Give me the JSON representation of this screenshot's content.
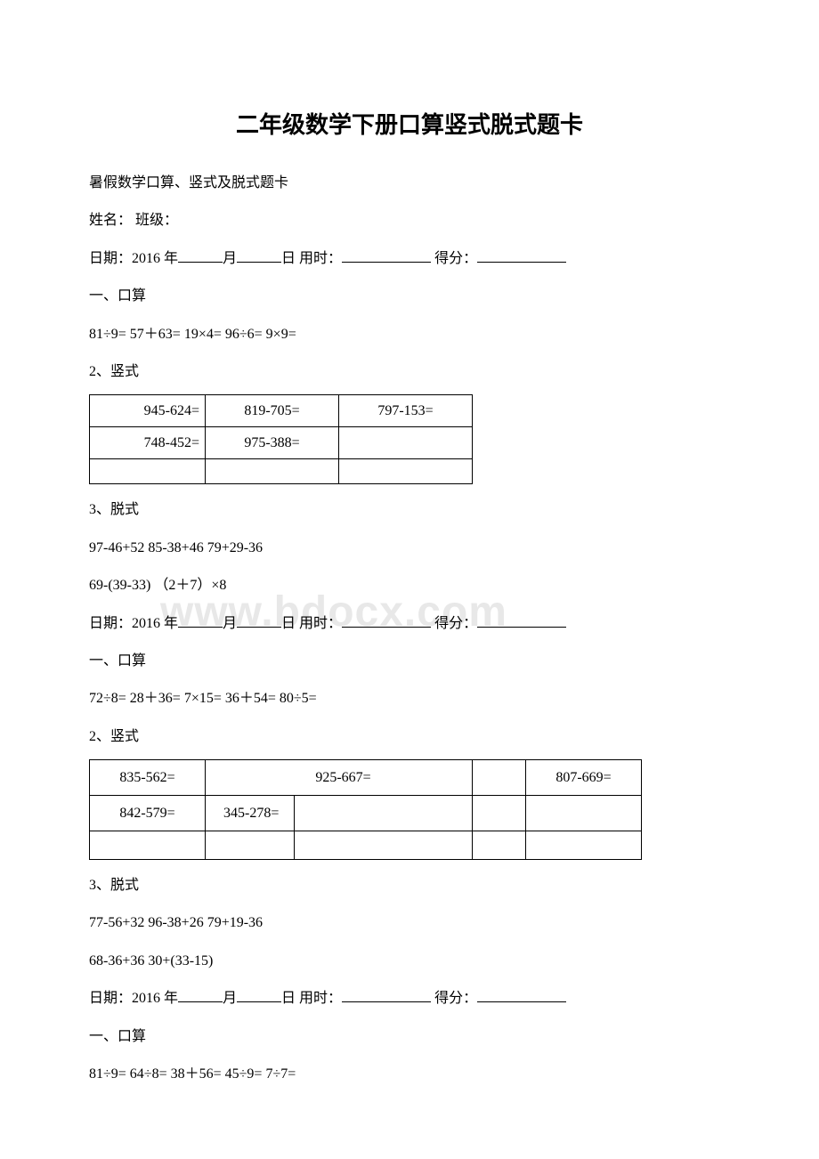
{
  "watermark": "www.bdocx.com",
  "title": "二年级数学下册口算竖式脱式题卡",
  "subtitle": "暑假数学口算、竖式及脱式题卡",
  "name_label": "姓名：",
  "class_label": " 班级：",
  "date_prefix": "日期：2016 年",
  "month_label": "月",
  "day_label": "日",
  "time_label": " 用时：",
  "score_label": " 得分：",
  "section1": "一、口算",
  "section2": "2、竖式",
  "section3": "3、脱式",
  "block1": {
    "kousuan": "81÷9=   57＋63=     19×4=  96÷6=    9×9=",
    "table": {
      "r1c1": "945-624=",
      "r1c2": "819-705=",
      "r1c3": "797-153=",
      "r2c1": "748-452=",
      "r2c2": "975-388=",
      "r2c3": ""
    },
    "tuoshi1": "97-46+52   85-38+46    79+29-36",
    "tuoshi2": "69-(39-33)    （2＋7）×8"
  },
  "block2": {
    "kousuan": "72÷8=   28＋36=  7×15=   36＋54=  80÷5=",
    "table": {
      "r1c1": "835-562=",
      "r1c2": "925-667=",
      "r1c3": "",
      "r1c4": "",
      "r1c5": "807-669=",
      "r2c1": "842-579=",
      "r2c2": "345-278=",
      "r2c3": "",
      "r2c4": "",
      "r2c5": ""
    },
    "tuoshi1": "77-56+32   96-38+26    79+19-36",
    "tuoshi2": "68-36+36   30+(33-15)"
  },
  "block3": {
    "kousuan": "81÷9=  64÷8=  38＋56=    45÷9=  7÷7="
  }
}
